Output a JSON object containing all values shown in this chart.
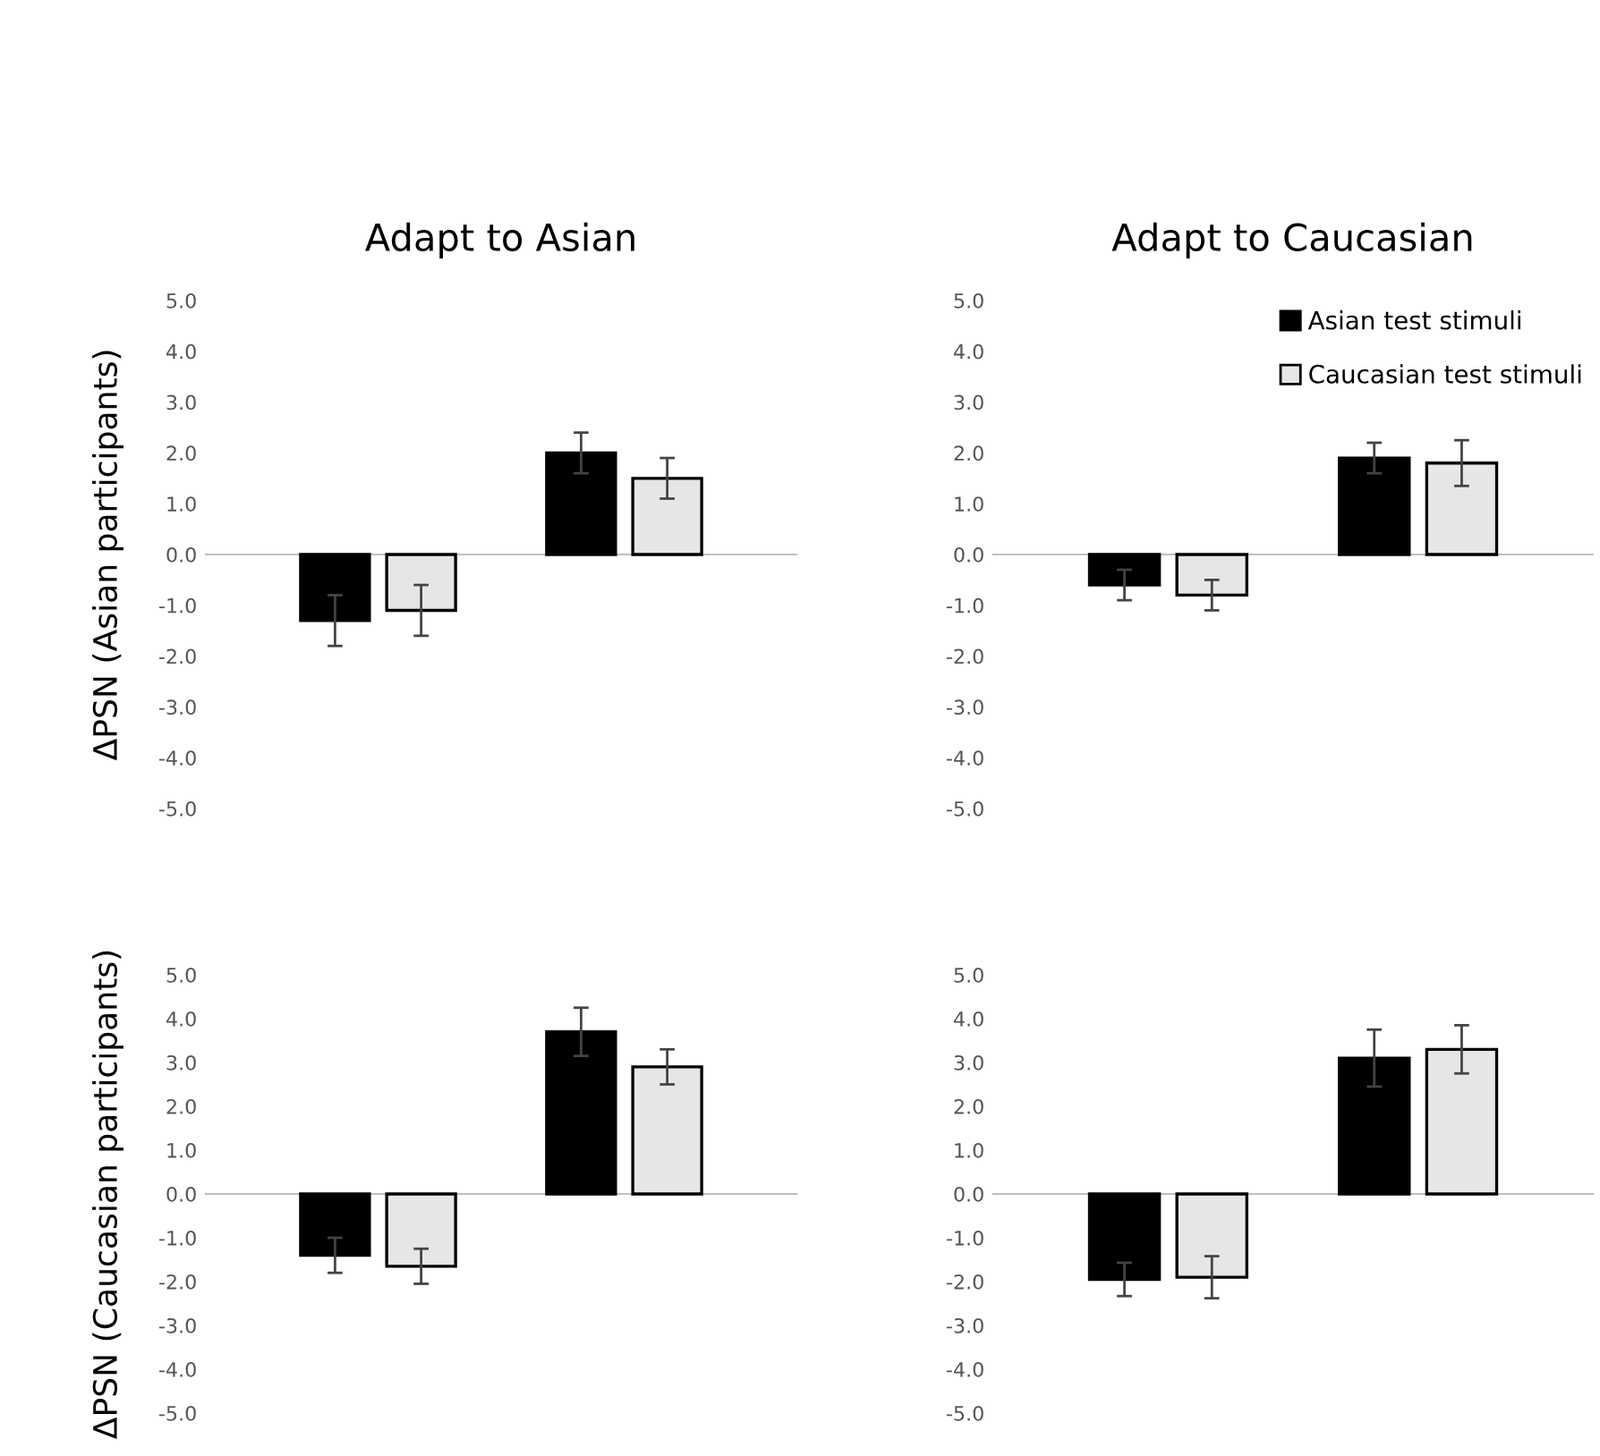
{
  "chart_data": [
    {
      "type": "bar",
      "title": "Adapt to Asian",
      "ylabel": "ΔPSN (Asian participants)",
      "categories": [
        null,
        null
      ],
      "ylim": [
        -5,
        5
      ],
      "yticks": [
        {
          "value": 5,
          "label": "5.0"
        },
        {
          "value": 4,
          "label": "4.0"
        },
        {
          "value": 3,
          "label": "3.0"
        },
        {
          "value": 2,
          "label": "2.0"
        },
        {
          "value": 1,
          "label": "1.0"
        },
        {
          "value": 0,
          "label": "0.0"
        },
        {
          "value": -1,
          "label": "-1.0"
        },
        {
          "value": -2,
          "label": "-2.0"
        },
        {
          "value": -3,
          "label": "-3.0"
        },
        {
          "value": -4,
          "label": "-4.0"
        },
        {
          "value": -5,
          "label": "-5.0"
        }
      ],
      "legend": false,
      "series": [
        {
          "color": "#000000",
          "values": [
            -1.3,
            2.0
          ],
          "errors": [
            0.5,
            0.4
          ]
        },
        {
          "color": "#e6e6e6",
          "values": [
            -1.1,
            1.5
          ],
          "errors": [
            0.5,
            0.4
          ]
        }
      ]
    },
    {
      "type": "bar",
      "title": "Adapt to Caucasian",
      "categories": [
        null,
        null
      ],
      "ylim": [
        -5,
        5
      ],
      "yticks": [
        {
          "value": 5,
          "label": "5.0"
        },
        {
          "value": 4,
          "label": "4.0"
        },
        {
          "value": 3,
          "label": "3.0"
        },
        {
          "value": 2,
          "label": "2.0"
        },
        {
          "value": 1,
          "label": "1.0"
        },
        {
          "value": 0,
          "label": "0.0"
        },
        {
          "value": -1,
          "label": "-1.0"
        },
        {
          "value": -2,
          "label": "-2.0"
        },
        {
          "value": -3,
          "label": "-3.0"
        },
        {
          "value": -4,
          "label": "-4.0"
        },
        {
          "value": -5,
          "label": "-5.0"
        }
      ],
      "legend": "top right",
      "series": [
        {
          "name": "Asian test stimuli",
          "color": "#000000",
          "values": [
            -0.6,
            1.9
          ],
          "errors": [
            0.3,
            0.3
          ]
        },
        {
          "name": "Caucasian test stimuli",
          "color": "#e6e6e6",
          "values": [
            -0.8,
            1.8
          ],
          "errors": [
            0.3,
            0.45
          ]
        }
      ]
    },
    {
      "type": "bar",
      "ylabel": "ΔPSN (Caucasian participants)",
      "categories": [
        null,
        null
      ],
      "ylim": [
        -5,
        5
      ],
      "yticks": [
        {
          "value": 5,
          "label": "5.0"
        },
        {
          "value": 4,
          "label": "4.0"
        },
        {
          "value": 3,
          "label": "3.0"
        },
        {
          "value": 2,
          "label": "2.0"
        },
        {
          "value": 1,
          "label": "1.0"
        },
        {
          "value": 0,
          "label": "0.0"
        },
        {
          "value": -1,
          "label": "-1.0"
        },
        {
          "value": -2,
          "label": "-2.0"
        },
        {
          "value": -3,
          "label": "-3.0"
        },
        {
          "value": -4,
          "label": "-4.0"
        },
        {
          "value": -5,
          "label": "-5.0"
        }
      ],
      "legend": false,
      "series": [
        {
          "color": "#000000",
          "values": [
            -1.4,
            3.7
          ],
          "errors": [
            0.4,
            0.55
          ]
        },
        {
          "color": "#e6e6e6",
          "values": [
            -1.65,
            2.9
          ],
          "errors": [
            0.4,
            0.4
          ]
        }
      ]
    },
    {
      "type": "bar",
      "categories": [
        null,
        null
      ],
      "ylim": [
        -5,
        5
      ],
      "yticks": [
        {
          "value": 5,
          "label": "5.0"
        },
        {
          "value": 4,
          "label": "4.0"
        },
        {
          "value": 3,
          "label": "3.0"
        },
        {
          "value": 2,
          "label": "2.0"
        },
        {
          "value": 1,
          "label": "1.0"
        },
        {
          "value": 0,
          "label": "0.0"
        },
        {
          "value": -1,
          "label": "-1.0"
        },
        {
          "value": -2,
          "label": "-2.0"
        },
        {
          "value": -3,
          "label": "-3.0"
        },
        {
          "value": -4,
          "label": "-4.0"
        },
        {
          "value": -5,
          "label": "-5.0"
        }
      ],
      "legend": false,
      "series": [
        {
          "color": "#000000",
          "values": [
            -1.95,
            3.1
          ],
          "errors": [
            0.38,
            0.65
          ]
        },
        {
          "color": "#e6e6e6",
          "values": [
            -1.9,
            3.3
          ],
          "errors": [
            0.48,
            0.55
          ]
        }
      ]
    }
  ]
}
